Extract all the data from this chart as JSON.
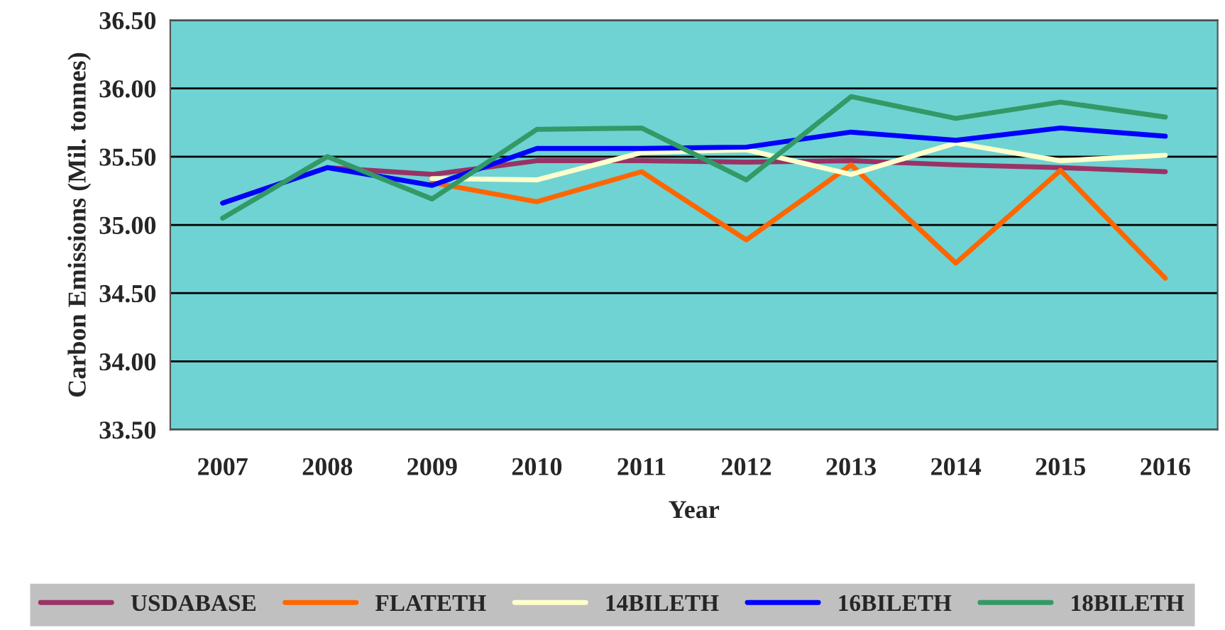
{
  "chart_data": {
    "type": "line",
    "xlabel": "Year",
    "ylabel": "Carbon Emissions (Mil. tonnes)",
    "categories": [
      "2007",
      "2008",
      "2009",
      "2010",
      "2011",
      "2012",
      "2013",
      "2014",
      "2015",
      "2016"
    ],
    "series": [
      {
        "name": "USDABASE",
        "color": "#993366",
        "values": [
          35.16,
          35.42,
          35.37,
          35.47,
          35.47,
          35.46,
          35.47,
          35.44,
          35.42,
          35.39
        ]
      },
      {
        "name": "FLATETH",
        "color": "#ff6600",
        "values": [
          null,
          null,
          35.31,
          35.17,
          35.39,
          34.89,
          35.44,
          34.72,
          35.4,
          34.61
        ]
      },
      {
        "name": "14BILETH",
        "color": "#ffffcc",
        "values": [
          null,
          null,
          35.34,
          35.33,
          35.53,
          35.55,
          35.37,
          35.6,
          35.47,
          35.51
        ]
      },
      {
        "name": "16BILETH",
        "color": "#0000ff",
        "values": [
          35.16,
          35.42,
          35.29,
          35.56,
          35.56,
          35.57,
          35.68,
          35.62,
          35.71,
          35.65
        ]
      },
      {
        "name": "18BILETH",
        "color": "#339966",
        "values": [
          35.05,
          35.5,
          35.19,
          35.7,
          35.71,
          35.33,
          35.94,
          35.78,
          35.9,
          35.79
        ]
      }
    ],
    "ylim": [
      33.5,
      36.5
    ],
    "yticks": [
      {
        "value": 33.5,
        "label": "33.50"
      },
      {
        "value": 34.0,
        "label": "34.00"
      },
      {
        "value": 34.5,
        "label": "34.50"
      },
      {
        "value": 35.0,
        "label": "35.00"
      },
      {
        "value": 35.5,
        "label": "35.50"
      },
      {
        "value": 36.0,
        "label": "36.00"
      },
      {
        "value": 36.5,
        "label": "36.50"
      }
    ],
    "grid": "y",
    "legend": "bottom",
    "marker": "none",
    "line_style": "solid"
  }
}
